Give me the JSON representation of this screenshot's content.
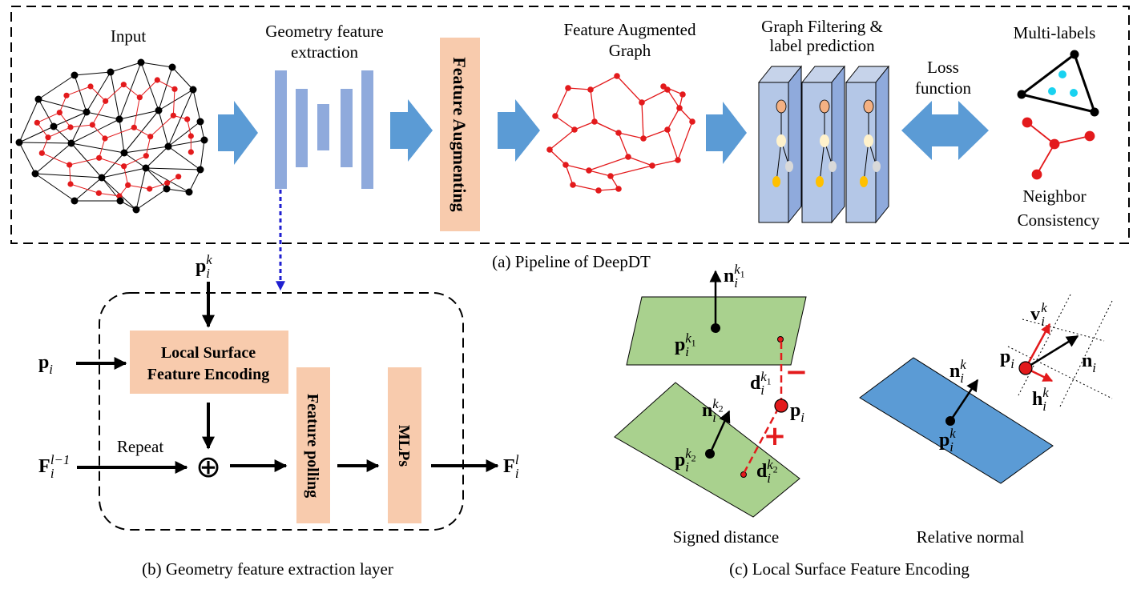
{
  "pipeline": {
    "caption": "(a) Pipeline of DeepDT",
    "input_label": "Input",
    "geometry_label_line1": "Geometry feature",
    "geometry_label_line2": "extraction",
    "augment_box_label": "Feature Augmenting",
    "augmented_graph_line1": "Feature Augmented",
    "augmented_graph_line2": "Graph",
    "graph_filter_line1": "Graph Filtering &",
    "graph_filter_line2": "label prediction",
    "loss_line1": "Loss",
    "loss_line2": "function",
    "multilabels_label": "Multi-labels",
    "neighbor_line1": "Neighbor",
    "neighbor_line2": "Consistency"
  },
  "layer": {
    "caption": "(b) Geometry feature extraction layer",
    "local_surface_line1": "Local Surface",
    "local_surface_line2": "Feature Encoding",
    "repeat_label": "Repeat",
    "feature_polling_label": "Feature polling",
    "mlps_label": "MLPs",
    "oplus_symbol": "⊕",
    "input_pik": {
      "base": "p",
      "sub": "i",
      "sup": "k"
    },
    "input_pi": {
      "base": "p",
      "sub": "i"
    },
    "input_F": {
      "base": "F",
      "sub": "i",
      "sup": "l−1"
    },
    "output_F": {
      "base": "F",
      "sub": "i",
      "sup": "l"
    }
  },
  "encoding": {
    "caption": "(c) Local Surface Feature Encoding",
    "signed_distance_label": "Signed distance",
    "relative_normal_label": "Relative normal",
    "minus_sign": "−",
    "plus_sign": "+",
    "n_k1": {
      "base": "n",
      "sub": "i",
      "sup": "k",
      "supsub": "1"
    },
    "p_k1": {
      "base": "p",
      "sub": "i",
      "sup": "k",
      "supsub": "1"
    },
    "d_k1": {
      "base": "d",
      "sub": "i",
      "sup": "k",
      "supsub": "1"
    },
    "p_i": {
      "base": "p",
      "sub": "i"
    },
    "n_k2": {
      "base": "n",
      "sub": "i",
      "sup": "k",
      "supsub": "2"
    },
    "p_k2": {
      "base": "p",
      "sub": "i",
      "sup": "k",
      "supsub": "2"
    },
    "d_k2": {
      "base": "d",
      "sub": "i",
      "sup": "k",
      "supsub": "2"
    },
    "rn_n_ik": {
      "base": "n",
      "sub": "i",
      "sup": "k"
    },
    "rn_p_ik": {
      "base": "p",
      "sub": "i",
      "sup": "k"
    },
    "rn_v_ik": {
      "base": "v",
      "sub": "i",
      "sup": "k"
    },
    "rn_h_ik": {
      "base": "h",
      "sub": "i",
      "sup": "k"
    },
    "rn_p_i": {
      "base": "p",
      "sub": "i"
    },
    "rn_n_i": {
      "base": "n",
      "sub": "i"
    }
  },
  "colors": {
    "arrow_blue": "#5b9bd5",
    "encoder_blue": "#8faadc",
    "orange_box": "#f8cbad",
    "green_plane": "#a9d18e",
    "blue_plane": "#5b9bd5",
    "red_node": "#e31a1c",
    "dashed_blue": "#1f1fd0"
  }
}
